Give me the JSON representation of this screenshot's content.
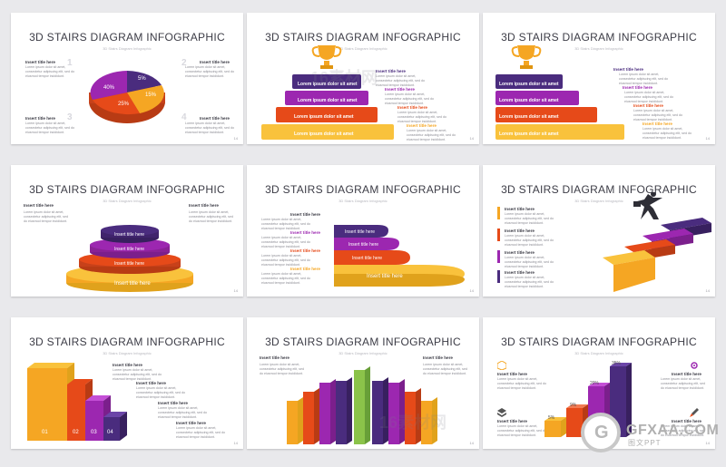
{
  "slide_title": "3D STAIRS DIAGRAM INFOGRAPHIC",
  "slide_subtitle": "3D Stairs Diagram Infographic",
  "insert_title": "Insert title here",
  "body_text": "Lorem ipsum dolor sit amet, consectetur adipiscing elit, sed do eiusmod tempor incididunt.",
  "lorem": "Lorem ipsum dolor sit amet",
  "page_number": "14",
  "nums": [
    "1",
    "2",
    "3",
    "4"
  ],
  "pct": [
    "5%",
    "9%",
    "20%",
    "35%"
  ],
  "pie_pct": [
    "5%",
    "15%",
    "25%",
    "40%"
  ],
  "bar_nums": [
    "01",
    "02",
    "03",
    "04"
  ],
  "watermark": "16素材网",
  "footer_logo": {
    "brand": "GFXAA.COM",
    "sub": "图文PPT",
    "g": "G"
  },
  "colors": {
    "purple_dark": "#4a2c7e",
    "magenta": "#9c27b0",
    "red": "#e64a19",
    "orange": "#f5a623",
    "yellow": "#f9c23c"
  }
}
